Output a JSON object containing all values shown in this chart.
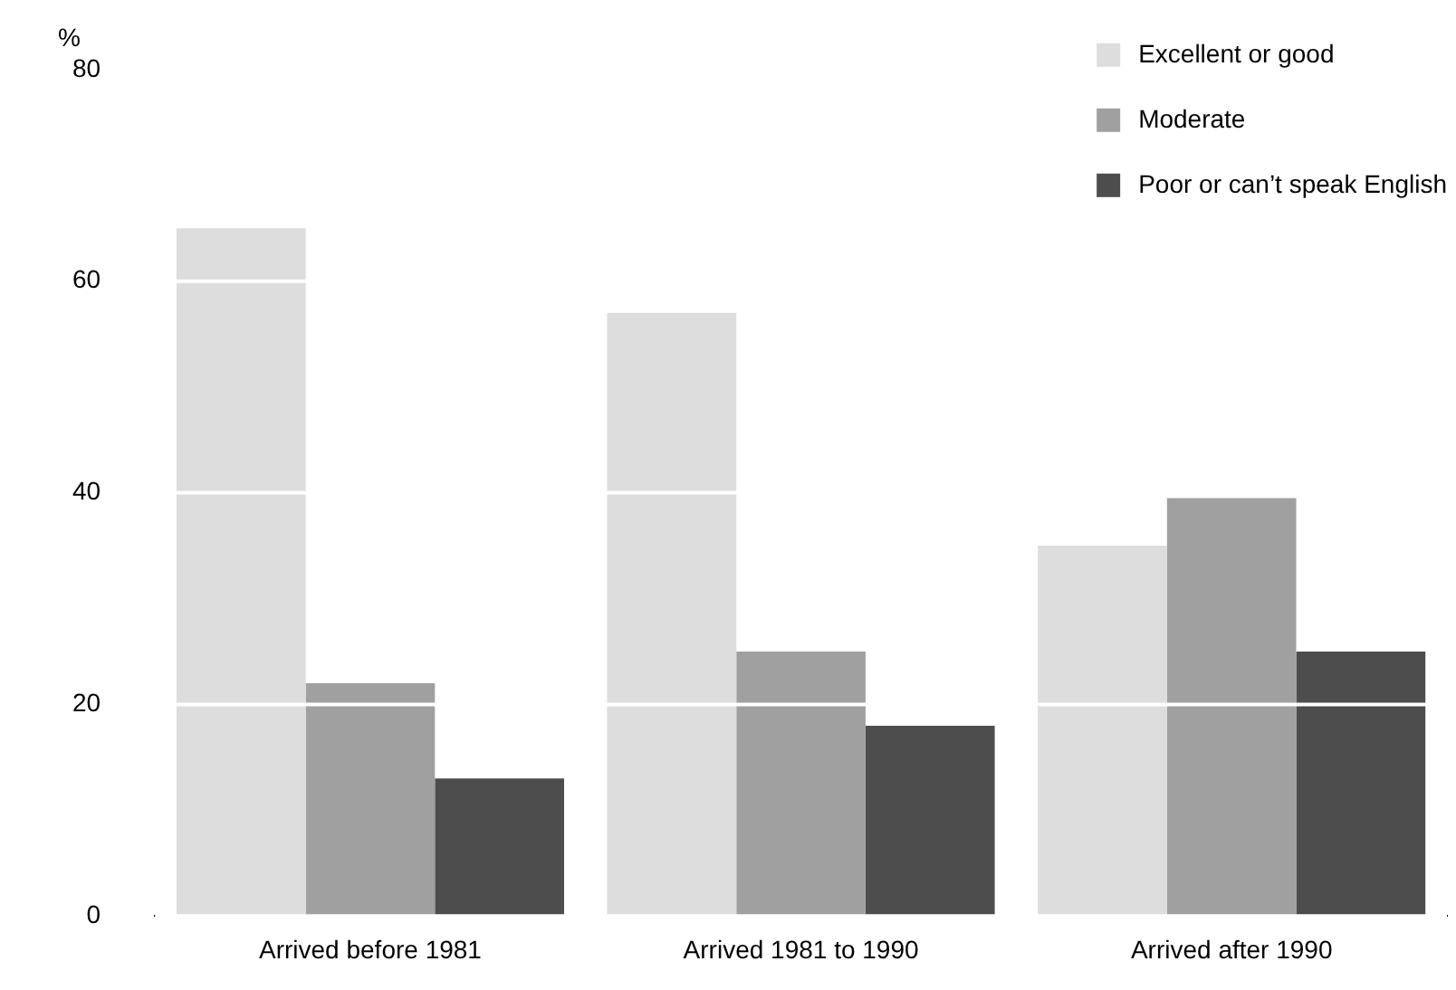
{
  "chart_data": {
    "type": "bar",
    "ylabel": "%",
    "categories": [
      "Arrived before 1981",
      "Arrived 1981 to 1990",
      "Arrived after 1990"
    ],
    "series": [
      {
        "name": "Excellent or good",
        "color": "#dddddd",
        "values": [
          65,
          57,
          35
        ]
      },
      {
        "name": "Moderate",
        "color": "#a0a0a0",
        "values": [
          22,
          25,
          39.5
        ]
      },
      {
        "name": "Poor or can’t speak English",
        "color": "#4d4d4d",
        "values": [
          13,
          18,
          25
        ]
      }
    ],
    "ylim": [
      0,
      80
    ],
    "yticks": [
      0,
      20,
      40,
      60,
      80
    ],
    "grid": "y",
    "legend": "top right"
  }
}
